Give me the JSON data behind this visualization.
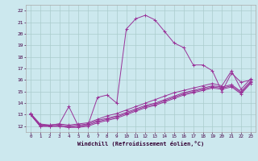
{
  "xlabel": "Windchill (Refroidissement éolien,°C)",
  "bg_color": "#cce8ee",
  "line_color": "#993399",
  "grid_color": "#aacccc",
  "xlim": [
    -0.5,
    23.5
  ],
  "ylim": [
    11.5,
    22.5
  ],
  "xticks": [
    0,
    1,
    2,
    3,
    4,
    5,
    6,
    7,
    8,
    9,
    10,
    11,
    12,
    13,
    14,
    15,
    16,
    17,
    18,
    19,
    20,
    21,
    22,
    23
  ],
  "yticks": [
    12,
    13,
    14,
    15,
    16,
    17,
    18,
    19,
    20,
    21,
    22
  ],
  "lines": [
    {
      "x": [
        0,
        1,
        2,
        3,
        4,
        5,
        6,
        7,
        8,
        9,
        10,
        11,
        12,
        13,
        14,
        15,
        16,
        17,
        18,
        19,
        20,
        21,
        22,
        23
      ],
      "y": [
        13.1,
        12.2,
        12.1,
        12.2,
        13.7,
        12.0,
        12.1,
        14.5,
        14.7,
        14.0,
        20.4,
        21.3,
        21.6,
        21.2,
        20.2,
        19.2,
        18.8,
        17.3,
        17.3,
        16.8,
        15.0,
        16.6,
        15.8,
        16.0
      ]
    },
    {
      "x": [
        0,
        1,
        2,
        3,
        4,
        5,
        6,
        7,
        8,
        9,
        10,
        11,
        12,
        13,
        14,
        15,
        16,
        17,
        18,
        19,
        20,
        21,
        22,
        23
      ],
      "y": [
        13.1,
        12.1,
        12.1,
        12.2,
        12.1,
        12.2,
        12.3,
        12.6,
        12.9,
        13.1,
        13.4,
        13.7,
        14.0,
        14.3,
        14.6,
        14.9,
        15.1,
        15.3,
        15.5,
        15.7,
        15.5,
        16.8,
        15.2,
        16.1
      ]
    },
    {
      "x": [
        0,
        1,
        2,
        3,
        4,
        5,
        6,
        7,
        8,
        9,
        10,
        11,
        12,
        13,
        14,
        15,
        16,
        17,
        18,
        19,
        20,
        21,
        22,
        23
      ],
      "y": [
        13.0,
        12.1,
        12.0,
        12.1,
        12.0,
        12.1,
        12.2,
        12.5,
        12.7,
        12.9,
        13.2,
        13.5,
        13.8,
        14.0,
        14.3,
        14.6,
        14.9,
        15.1,
        15.3,
        15.5,
        15.4,
        15.6,
        15.0,
        15.9
      ]
    },
    {
      "x": [
        0,
        1,
        2,
        3,
        4,
        5,
        6,
        7,
        8,
        9,
        10,
        11,
        12,
        13,
        14,
        15,
        16,
        17,
        18,
        19,
        20,
        21,
        22,
        23
      ],
      "y": [
        13.0,
        12.0,
        12.0,
        12.0,
        11.9,
        12.0,
        12.1,
        12.4,
        12.6,
        12.8,
        13.1,
        13.4,
        13.7,
        13.9,
        14.2,
        14.5,
        14.8,
        15.0,
        15.2,
        15.4,
        15.3,
        15.5,
        14.9,
        15.8
      ]
    },
    {
      "x": [
        0,
        1,
        2,
        3,
        4,
        5,
        6,
        7,
        8,
        9,
        10,
        11,
        12,
        13,
        14,
        15,
        16,
        17,
        18,
        19,
        20,
        21,
        22,
        23
      ],
      "y": [
        13.0,
        12.0,
        12.0,
        12.0,
        11.9,
        11.9,
        12.0,
        12.3,
        12.5,
        12.7,
        13.0,
        13.3,
        13.6,
        13.8,
        14.1,
        14.4,
        14.7,
        14.9,
        15.1,
        15.3,
        15.2,
        15.4,
        14.8,
        15.7
      ]
    }
  ]
}
